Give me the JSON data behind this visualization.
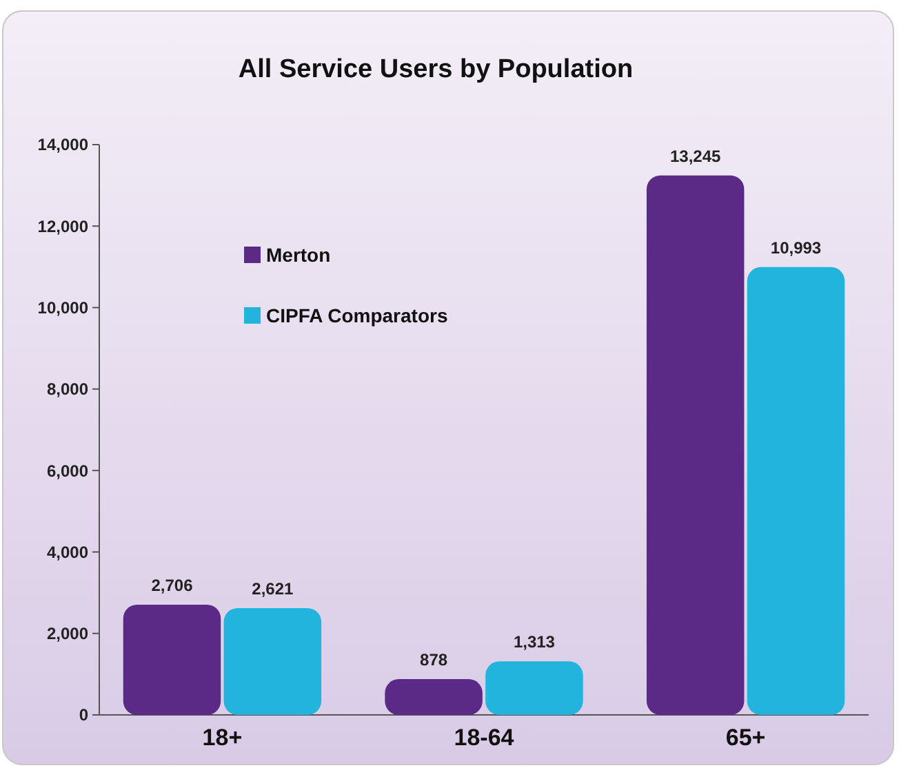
{
  "chart_data": {
    "type": "bar",
    "title": "All Service Users  by Population",
    "categories": [
      "18+",
      "18-64",
      "65+"
    ],
    "series": [
      {
        "name": "Merton",
        "color": "#5a2a86",
        "values": [
          2706,
          878,
          13245
        ],
        "value_labels": [
          "2,706",
          "878",
          "13,245"
        ]
      },
      {
        "name": "CIPFA  Comparators",
        "color": "#22b4dc",
        "values": [
          2621,
          1313,
          10993
        ],
        "value_labels": [
          "2,621",
          "1,313",
          "10,993"
        ]
      }
    ],
    "ylim": [
      0,
      14000
    ],
    "yticks": [
      {
        "value": 0,
        "label": "0"
      },
      {
        "value": 2000,
        "label": "2,000"
      },
      {
        "value": 4000,
        "label": "4,000"
      },
      {
        "value": 6000,
        "label": "6,000"
      },
      {
        "value": 8000,
        "label": "8,000"
      },
      {
        "value": 10000,
        "label": "10,000"
      },
      {
        "value": 12000,
        "label": "12,000"
      },
      {
        "value": 14000,
        "label": "14,000"
      }
    ],
    "legend": "top left",
    "grid": false
  }
}
